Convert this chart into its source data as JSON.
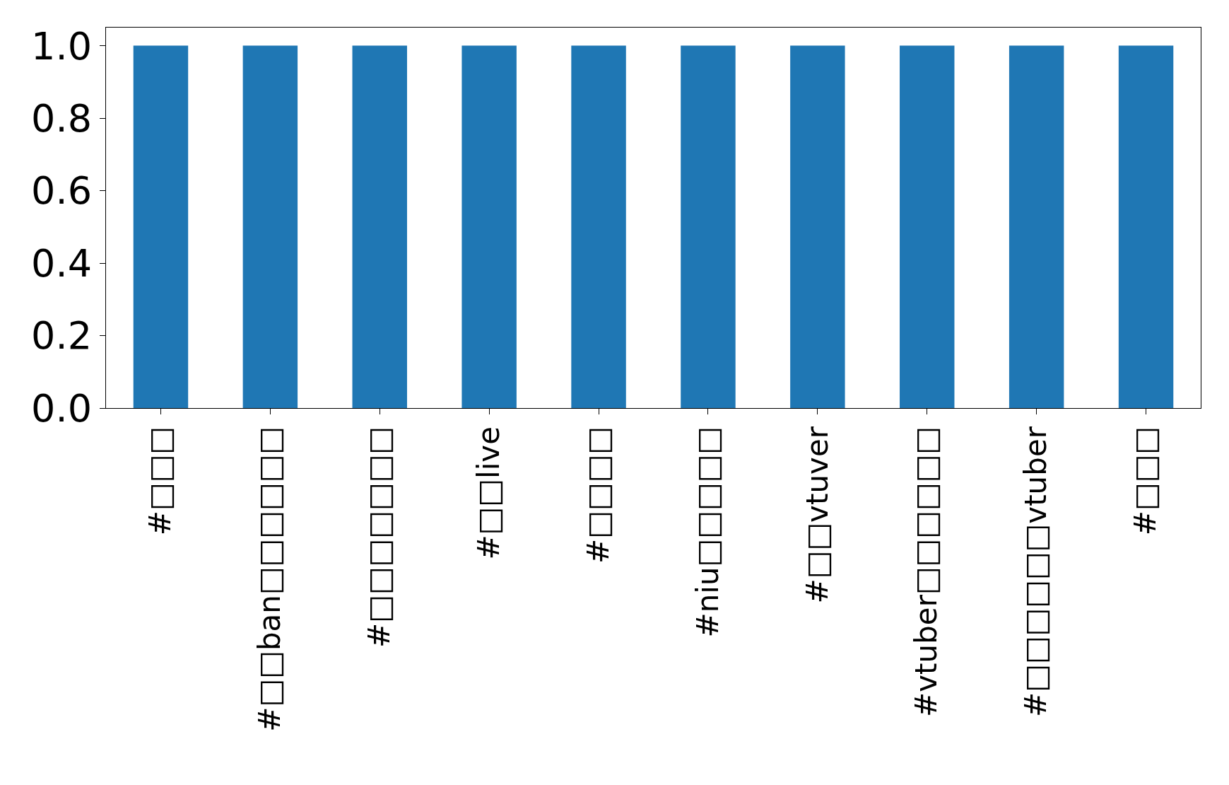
{
  "chart_data": {
    "type": "bar",
    "categories": [
      "#□□□",
      "#□□ban□□□□□□",
      "#□□□□□□□",
      "#□□live",
      "#□□□□",
      "#niu□□□□□",
      "#□□vtuver",
      "#vtuber□□□□□□",
      "#□□□□□□vtuber",
      "#□□□"
    ],
    "values": [
      1,
      1,
      1,
      1,
      1,
      1,
      1,
      1,
      1,
      1
    ],
    "color": "#1f77b4",
    "ylim": [
      0,
      1.05
    ],
    "yticks": [
      {
        "value": 0,
        "label": "0.0"
      },
      {
        "value": 0.2,
        "label": "0.2"
      },
      {
        "value": 0.4,
        "label": "0.4"
      },
      {
        "value": 0.6,
        "label": "0.6"
      },
      {
        "value": 0.8,
        "label": "0.8"
      },
      {
        "value": 1,
        "label": "1.0"
      }
    ],
    "grid": false,
    "legend": false
  }
}
